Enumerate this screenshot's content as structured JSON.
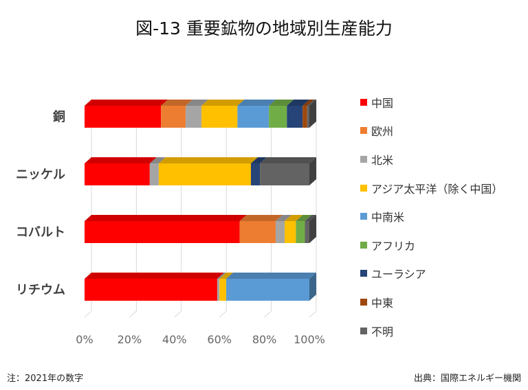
{
  "title": "図-13 重要鉱物の地域別生産能力",
  "note": "注：2021年の数字",
  "source": "出典：国際エネルギー機関",
  "chart_data": {
    "type": "bar",
    "orientation": "horizontal",
    "stacked": "percent",
    "style": "3d",
    "categories": [
      "銅",
      "ニッケル",
      "コバルト",
      "リチウム"
    ],
    "xlim": [
      0,
      100
    ],
    "x_ticks": [
      "0%",
      "20%",
      "40%",
      "60%",
      "80%",
      "100%"
    ],
    "grid": true,
    "legend_position": "right",
    "series": [
      {
        "name": "中国",
        "color": "#ff0000",
        "values": [
          34,
          29,
          69,
          59
        ]
      },
      {
        "name": "欧州",
        "color": "#ed7d31",
        "values": [
          11,
          0,
          16,
          0
        ]
      },
      {
        "name": "北米",
        "color": "#a5a5a5",
        "values": [
          7,
          4,
          4,
          1
        ]
      },
      {
        "name": "アジア太平洋（除く中国）",
        "color": "#ffc000",
        "values": [
          16,
          41,
          5,
          3
        ]
      },
      {
        "name": "中南米",
        "color": "#5b9bd5",
        "values": [
          14,
          0,
          0,
          37
        ]
      },
      {
        "name": "アフリカ",
        "color": "#70ad47",
        "values": [
          8,
          0,
          4,
          0
        ]
      },
      {
        "name": "ユーラシア",
        "color": "#264478",
        "values": [
          7,
          4,
          0,
          0
        ]
      },
      {
        "name": "中東",
        "color": "#9e480e",
        "values": [
          2,
          0,
          0,
          0
        ]
      },
      {
        "name": "不明",
        "color": "#636363",
        "values": [
          1,
          22,
          2,
          0
        ]
      }
    ]
  }
}
